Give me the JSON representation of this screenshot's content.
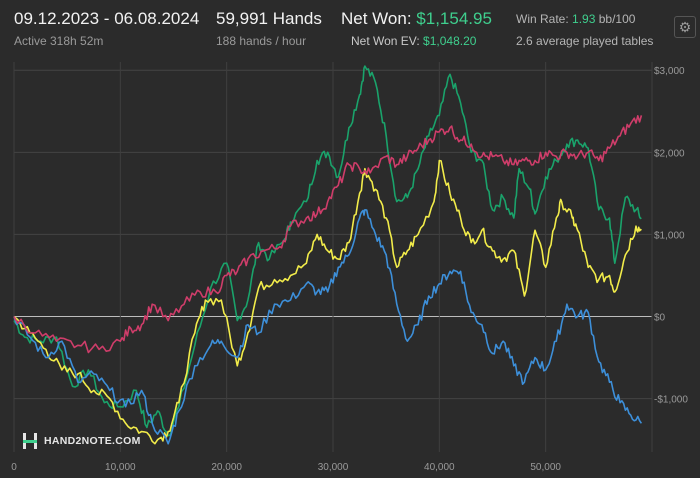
{
  "header": {
    "date_range": "09.12.2023 - 06.08.2024",
    "active": "Active 318h 52m",
    "hands": "59,991 Hands",
    "hands_per_hour": "188 hands / hour",
    "net_won_label": "Net Won:",
    "net_won_value": "$1,154.95",
    "net_won_ev_label": "Net Won  EV:",
    "net_won_ev_value": "$1,048.20",
    "win_rate_label": "Win Rate:",
    "win_rate_value": "1.93",
    "win_rate_unit": "bb/100",
    "avg_tables": "2.6 average played tables"
  },
  "logo": {
    "text": "HAND2NOTE.COM"
  },
  "icons": {
    "settings": "gear-icon",
    "logo": "hand2note-logo-icon"
  },
  "colors": {
    "background": "#2b2b2b",
    "green": "#1aa36b",
    "yellow": "#f2ec4a",
    "blue": "#3d8fd9",
    "pink": "#cf3d6a",
    "accent_text": "#3fcf8e"
  },
  "chart_data": {
    "type": "line",
    "xlim": [
      0,
      60000
    ],
    "ylim": [
      -1650,
      3100
    ],
    "x_ticks": [
      0,
      10000,
      20000,
      30000,
      40000,
      50000
    ],
    "x_tick_labels": [
      "0",
      "10,000",
      "20,000",
      "30,000",
      "40,000",
      "50,000"
    ],
    "y_ticks": [
      3000,
      2000,
      1000,
      0,
      -1000
    ],
    "y_tick_labels": [
      "$3,000",
      "$2,000",
      "$1,000",
      "$0",
      "-$1,000"
    ],
    "y_axis_side": "right",
    "grid": true,
    "series": [
      {
        "color": "#1aa36b",
        "points": [
          [
            0,
            -50
          ],
          [
            1000,
            -250
          ],
          [
            2500,
            -300
          ],
          [
            4000,
            -250
          ],
          [
            5500,
            -850
          ],
          [
            7000,
            -650
          ],
          [
            8500,
            -1050
          ],
          [
            10000,
            -1100
          ],
          [
            11500,
            -900
          ],
          [
            12500,
            -1350
          ],
          [
            13500,
            -1150
          ],
          [
            14500,
            -1450
          ],
          [
            15500,
            -1100
          ],
          [
            17000,
            -350
          ],
          [
            18500,
            350
          ],
          [
            20000,
            650
          ],
          [
            21000,
            -50
          ],
          [
            22000,
            200
          ],
          [
            23000,
            900
          ],
          [
            24000,
            700
          ],
          [
            25500,
            950
          ],
          [
            26000,
            1150
          ],
          [
            27500,
            1400
          ],
          [
            28500,
            1900
          ],
          [
            29500,
            2000
          ],
          [
            30500,
            1700
          ],
          [
            31500,
            2300
          ],
          [
            32500,
            2700
          ],
          [
            33000,
            3050
          ],
          [
            34000,
            2850
          ],
          [
            35000,
            2200
          ],
          [
            36000,
            1400
          ],
          [
            37000,
            1450
          ],
          [
            38000,
            1800
          ],
          [
            39000,
            2200
          ],
          [
            40000,
            2450
          ],
          [
            41000,
            2950
          ],
          [
            42000,
            2600
          ],
          [
            43000,
            2000
          ],
          [
            44000,
            1900
          ],
          [
            45000,
            1300
          ],
          [
            46000,
            1450
          ],
          [
            47000,
            1200
          ],
          [
            47500,
            1800
          ],
          [
            48500,
            1550
          ],
          [
            49000,
            1250
          ],
          [
            50000,
            1700
          ],
          [
            51000,
            1900
          ],
          [
            52000,
            2100
          ],
          [
            53000,
            2150
          ],
          [
            54000,
            2050
          ],
          [
            55000,
            1300
          ],
          [
            56000,
            1200
          ],
          [
            56500,
            650
          ],
          [
            57500,
            1450
          ],
          [
            58500,
            1300
          ],
          [
            59000,
            1200
          ]
        ]
      },
      {
        "color": "#f2ec4a",
        "points": [
          [
            0,
            0
          ],
          [
            1500,
            -200
          ],
          [
            3000,
            -400
          ],
          [
            4500,
            -650
          ],
          [
            6000,
            -700
          ],
          [
            7500,
            -900
          ],
          [
            9000,
            -1000
          ],
          [
            10500,
            -1300
          ],
          [
            12000,
            -1400
          ],
          [
            13500,
            -1500
          ],
          [
            14500,
            -1400
          ],
          [
            15500,
            -1050
          ],
          [
            17000,
            -200
          ],
          [
            18000,
            200
          ],
          [
            19500,
            200
          ],
          [
            21000,
            -600
          ],
          [
            22000,
            -200
          ],
          [
            23000,
            350
          ],
          [
            24500,
            450
          ],
          [
            26000,
            500
          ],
          [
            27500,
            650
          ],
          [
            28500,
            1000
          ],
          [
            29500,
            800
          ],
          [
            30500,
            700
          ],
          [
            31500,
            900
          ],
          [
            32500,
            1500
          ],
          [
            33000,
            1800
          ],
          [
            34000,
            1550
          ],
          [
            35000,
            1200
          ],
          [
            36000,
            600
          ],
          [
            37000,
            800
          ],
          [
            38000,
            1000
          ],
          [
            39500,
            1400
          ],
          [
            40000,
            1900
          ],
          [
            41000,
            1500
          ],
          [
            42000,
            1200
          ],
          [
            43000,
            900
          ],
          [
            44000,
            1050
          ],
          [
            45000,
            800
          ],
          [
            46000,
            700
          ],
          [
            47000,
            800
          ],
          [
            48000,
            250
          ],
          [
            49000,
            1050
          ],
          [
            50000,
            600
          ],
          [
            51000,
            1200
          ],
          [
            51500,
            1400
          ],
          [
            52500,
            1200
          ],
          [
            53000,
            1050
          ],
          [
            54000,
            600
          ],
          [
            55000,
            450
          ],
          [
            56000,
            500
          ],
          [
            56500,
            300
          ],
          [
            57500,
            750
          ],
          [
            58500,
            1100
          ],
          [
            59000,
            1050
          ]
        ]
      },
      {
        "color": "#3d8fd9",
        "points": [
          [
            0,
            0
          ],
          [
            1500,
            -250
          ],
          [
            3000,
            -500
          ],
          [
            4500,
            -300
          ],
          [
            6000,
            -800
          ],
          [
            7500,
            -700
          ],
          [
            9000,
            -900
          ],
          [
            10500,
            -1100
          ],
          [
            12000,
            -900
          ],
          [
            13000,
            -1300
          ],
          [
            14500,
            -1550
          ],
          [
            15500,
            -1150
          ],
          [
            17000,
            -600
          ],
          [
            18500,
            -350
          ],
          [
            19500,
            -300
          ],
          [
            21000,
            -500
          ],
          [
            22000,
            -100
          ],
          [
            23000,
            -200
          ],
          [
            24500,
            150
          ],
          [
            26000,
            200
          ],
          [
            27500,
            400
          ],
          [
            28500,
            300
          ],
          [
            29500,
            300
          ],
          [
            30500,
            600
          ],
          [
            31500,
            750
          ],
          [
            32500,
            1200
          ],
          [
            33000,
            1300
          ],
          [
            34000,
            1000
          ],
          [
            35000,
            750
          ],
          [
            36000,
            150
          ],
          [
            37000,
            -300
          ],
          [
            38000,
            -100
          ],
          [
            39000,
            250
          ],
          [
            40000,
            400
          ],
          [
            41000,
            550
          ],
          [
            42000,
            550
          ],
          [
            43000,
            50
          ],
          [
            44000,
            -100
          ],
          [
            45000,
            -450
          ],
          [
            46000,
            -300
          ],
          [
            47000,
            -600
          ],
          [
            48000,
            -800
          ],
          [
            49000,
            -500
          ],
          [
            50000,
            -650
          ],
          [
            51000,
            -300
          ],
          [
            52000,
            150
          ],
          [
            53000,
            0
          ],
          [
            54000,
            50
          ],
          [
            55000,
            -550
          ],
          [
            56000,
            -800
          ],
          [
            57000,
            -1050
          ],
          [
            58000,
            -1200
          ],
          [
            59000,
            -1300
          ]
        ]
      },
      {
        "color": "#cf3d6a",
        "points": [
          [
            0,
            0
          ],
          [
            2000,
            -200
          ],
          [
            4000,
            -300
          ],
          [
            6000,
            -350
          ],
          [
            8000,
            -400
          ],
          [
            10000,
            -300
          ],
          [
            11000,
            -150
          ],
          [
            12000,
            -100
          ],
          [
            13000,
            150
          ],
          [
            14500,
            -50
          ],
          [
            16000,
            150
          ],
          [
            17500,
            300
          ],
          [
            19000,
            300
          ],
          [
            20000,
            500
          ],
          [
            21000,
            550
          ],
          [
            22000,
            700
          ],
          [
            23500,
            800
          ],
          [
            25000,
            850
          ],
          [
            26000,
            1100
          ],
          [
            27500,
            1200
          ],
          [
            28500,
            1250
          ],
          [
            29500,
            1400
          ],
          [
            30500,
            1600
          ],
          [
            31500,
            1850
          ],
          [
            32500,
            1800
          ],
          [
            33500,
            1750
          ],
          [
            35000,
            1950
          ],
          [
            36000,
            1850
          ],
          [
            37000,
            1950
          ],
          [
            38000,
            2050
          ],
          [
            39000,
            2150
          ],
          [
            40000,
            2250
          ],
          [
            41000,
            2300
          ],
          [
            42000,
            2150
          ],
          [
            43000,
            2100
          ],
          [
            44000,
            1950
          ],
          [
            45000,
            1950
          ],
          [
            46000,
            1900
          ],
          [
            47000,
            1850
          ],
          [
            48000,
            1900
          ],
          [
            49000,
            1900
          ],
          [
            50000,
            2000
          ],
          [
            51000,
            1950
          ],
          [
            52000,
            2000
          ],
          [
            53000,
            1950
          ],
          [
            54000,
            2000
          ],
          [
            55000,
            1900
          ],
          [
            56000,
            2050
          ],
          [
            57000,
            2200
          ],
          [
            58000,
            2350
          ],
          [
            59000,
            2450
          ]
        ]
      }
    ]
  }
}
